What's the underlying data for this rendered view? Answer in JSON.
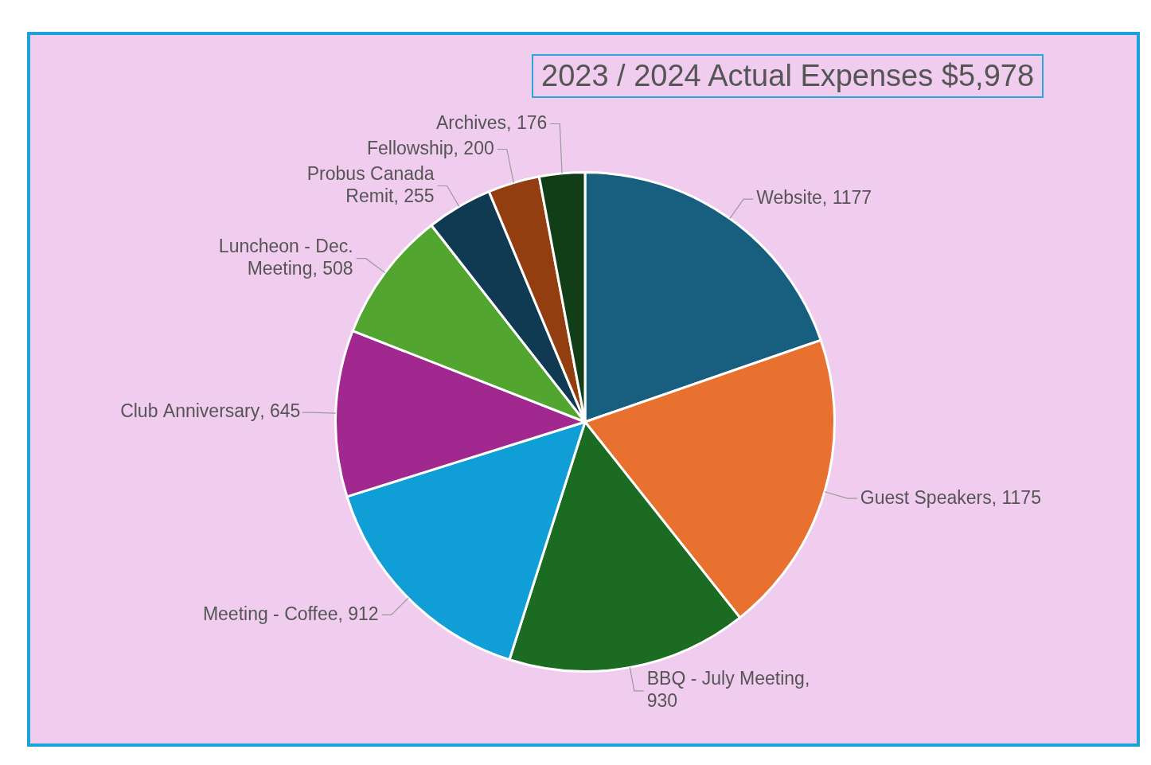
{
  "chart_data": {
    "type": "pie",
    "title": "2023 / 2024 Actual Expenses $5,978",
    "categories": [
      "Website",
      "Guest Speakers",
      "BBQ - July Meeting",
      "Meeting - Coffee",
      "Club Anniversary",
      "Luncheon - Dec. Meeting",
      "Probus Canada Remit",
      "Fellowship",
      "Archives"
    ],
    "values": [
      1177,
      1175,
      930,
      912,
      645,
      508,
      255,
      200,
      176
    ],
    "colors": [
      "#175e7f",
      "#e8712f",
      "#1c6b22",
      "#0f9fd6",
      "#a0288f",
      "#52a52f",
      "#0f3a52",
      "#933e10",
      "#123e17"
    ],
    "value_labels": [
      ", 1177",
      ", 1175",
      ", 930",
      ", 912",
      ", 645",
      ", 508",
      ", 255",
      ", 200",
      ", 176"
    ],
    "legend": false
  }
}
